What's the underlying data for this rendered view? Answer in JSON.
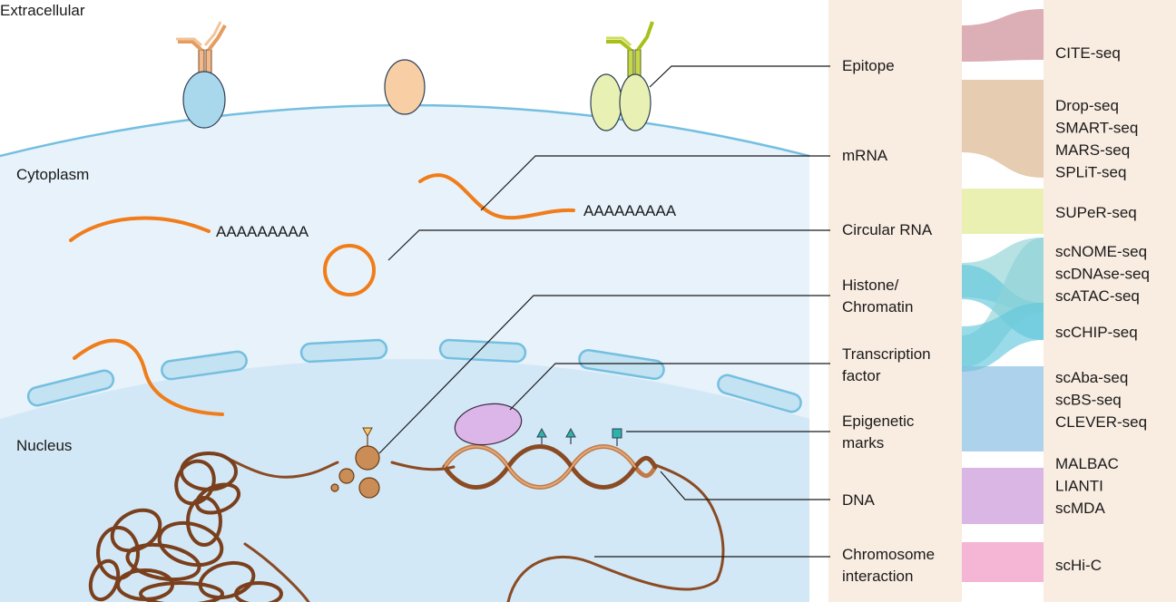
{
  "regions": {
    "extracellular": "Extracellular",
    "cytoplasm": "Cytoplasm",
    "nucleus": "Nucleus"
  },
  "polya": [
    "AAAAAAAAA",
    "AAAAAAAAA"
  ],
  "features": [
    {
      "lines": [
        "Epitope"
      ]
    },
    {
      "lines": [
        "mRNA"
      ]
    },
    {
      "lines": [
        "Circular RNA"
      ]
    },
    {
      "lines": [
        "Histone/",
        "Chromatin"
      ]
    },
    {
      "lines": [
        "Transcription",
        "factor"
      ]
    },
    {
      "lines": [
        "Epigenetic",
        "marks"
      ]
    },
    {
      "lines": [
        "DNA"
      ]
    },
    {
      "lines": [
        "Chromosome",
        "interaction"
      ]
    }
  ],
  "techniques": [
    {
      "lines": [
        "CITE-seq"
      ],
      "color": "#c9838f"
    },
    {
      "lines": [
        "Drop-seq",
        "SMART-seq",
        "MARS-seq",
        "SPLiT-seq"
      ],
      "color": "#d9b187"
    },
    {
      "lines": [
        "SUPeR-seq"
      ],
      "color": "#dde889"
    },
    {
      "lines": [
        "scNOME-seq",
        "scDNAse-seq",
        "scATAC-seq"
      ],
      "color": "#8fd3d6"
    },
    {
      "lines": [
        "scCHIP-seq"
      ],
      "color": "#63c7dc"
    },
    {
      "lines": [
        "scAba-seq",
        "scBS-seq",
        "CLEVER-seq"
      ],
      "color": "#7fbbe0"
    },
    {
      "lines": [
        "MALBAC",
        "LIANTI",
        "scMDA"
      ],
      "color": "#c58fd6"
    },
    {
      "lines": [
        "scHi-C"
      ],
      "color": "#f08dbd"
    }
  ],
  "colors": {
    "panel_bg": "#f9ece1",
    "cytoplasm": "#e7f2fa",
    "nucleus": "#d3e8f6",
    "membrane": "#74bfe0",
    "rna": "#f07d1a",
    "dna": "#8a4b24"
  }
}
